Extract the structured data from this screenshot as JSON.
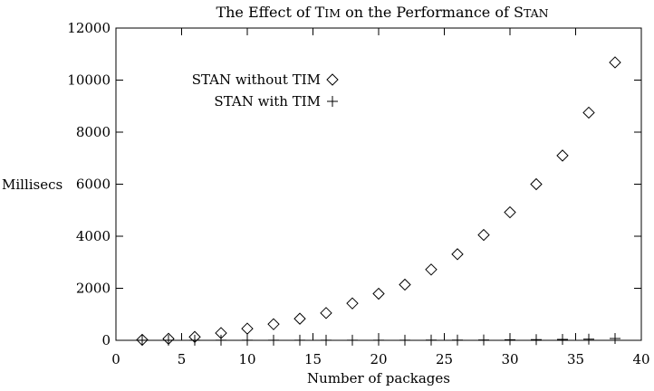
{
  "chart_data": {
    "type": "scatter",
    "title_parts": [
      {
        "text": "The Effect of T",
        "sc": false
      },
      {
        "text": "IM",
        "sc": true
      },
      {
        "text": " on the Performance of S",
        "sc": false
      },
      {
        "text": "TAN",
        "sc": true
      }
    ],
    "xlabel": "Number of packages",
    "ylabel": "Millisecs",
    "xlim": [
      0,
      40
    ],
    "ylim": [
      0,
      12000
    ],
    "xticks": [
      0,
      5,
      10,
      15,
      20,
      25,
      30,
      35,
      40
    ],
    "yticks": [
      0,
      2000,
      4000,
      6000,
      8000,
      10000,
      12000
    ],
    "grid": false,
    "legend_position": "top-left",
    "series": [
      {
        "name": "STAN without TIM",
        "marker": "diamond",
        "x": [
          2,
          4,
          6,
          8,
          10,
          12,
          14,
          16,
          18,
          20,
          22,
          24,
          26,
          28,
          30,
          32,
          34,
          36,
          38
        ],
        "y": [
          20,
          60,
          130,
          280,
          450,
          620,
          830,
          1050,
          1420,
          1790,
          2140,
          2720,
          3310,
          4050,
          4920,
          6000,
          7100,
          8750,
          10680
        ]
      },
      {
        "name": "STAN with TIM",
        "marker": "plus",
        "x": [
          2,
          4,
          6,
          8,
          10,
          12,
          14,
          16,
          18,
          20,
          22,
          24,
          26,
          28,
          30,
          32,
          34,
          36,
          38
        ],
        "y": [
          5,
          5,
          5,
          5,
          5,
          5,
          5,
          5,
          5,
          5,
          5,
          8,
          10,
          15,
          20,
          25,
          35,
          45,
          70
        ]
      }
    ]
  }
}
